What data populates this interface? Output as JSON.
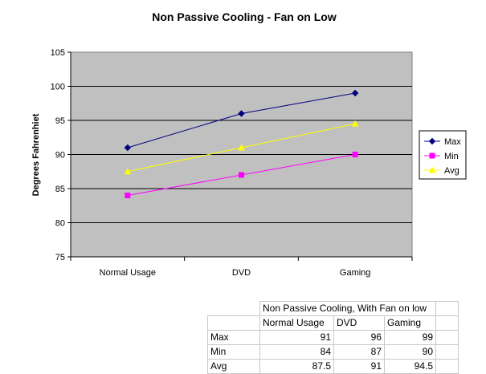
{
  "chart_data": {
    "type": "line",
    "title": "Non Passive Cooling - Fan on Low",
    "xlabel": "",
    "ylabel": "Degrees Fahrenhiet",
    "categories": [
      "Normal Usage",
      "DVD",
      "Gaming"
    ],
    "ylim": [
      75,
      105
    ],
    "yticks": [
      75,
      80,
      85,
      90,
      95,
      100,
      105
    ],
    "grid": true,
    "legend_position": "right",
    "plot_background": "#c0c0c0",
    "series": [
      {
        "name": "Max",
        "values": [
          91,
          96,
          99
        ],
        "color": "#000080",
        "marker": "diamond"
      },
      {
        "name": "Min",
        "values": [
          84,
          87,
          90
        ],
        "color": "#ff00ff",
        "marker": "square"
      },
      {
        "name": "Avg",
        "values": [
          87.5,
          91,
          94.5
        ],
        "color": "#ffff00",
        "marker": "triangle"
      }
    ]
  },
  "table": {
    "title": "Non Passive Cooling, With Fan on low",
    "columns": [
      "Normal Usage",
      "DVD",
      "Gaming"
    ],
    "rows": [
      {
        "label": "Max",
        "values": [
          "91",
          "96",
          "99"
        ]
      },
      {
        "label": "Min",
        "values": [
          "84",
          "87",
          "90"
        ]
      },
      {
        "label": "Avg",
        "values": [
          "87.5",
          "91",
          "94.5"
        ]
      }
    ]
  }
}
